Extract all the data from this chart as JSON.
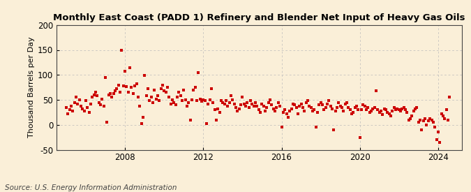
{
  "title": "Monthly East Coast (PADD 1) Refinery and Blender Net Input of Heavy Gas Oils",
  "ylabel": "Thousand Barrels per Day",
  "source": "Source: U.S. Energy Information Administration",
  "background_color": "#faefd8",
  "dot_color": "#cc0000",
  "grid_color": "#bbbbbb",
  "ylim": [
    -50,
    200
  ],
  "yticks": [
    -50,
    0,
    50,
    100,
    150,
    200
  ],
  "xticks": [
    2008,
    2012,
    2016,
    2020,
    2024
  ],
  "xlim": [
    2004.5,
    2025.2
  ],
  "data": {
    "dates": [
      2005.0,
      2005.083,
      2005.167,
      2005.25,
      2005.333,
      2005.417,
      2005.5,
      2005.583,
      2005.667,
      2005.75,
      2005.833,
      2005.917,
      2006.0,
      2006.083,
      2006.167,
      2006.25,
      2006.333,
      2006.417,
      2006.5,
      2006.583,
      2006.667,
      2006.75,
      2006.833,
      2006.917,
      2007.0,
      2007.083,
      2007.167,
      2007.25,
      2007.333,
      2007.417,
      2007.5,
      2007.583,
      2007.667,
      2007.75,
      2007.833,
      2007.917,
      2008.0,
      2008.083,
      2008.167,
      2008.25,
      2008.333,
      2008.417,
      2008.5,
      2008.583,
      2008.667,
      2008.75,
      2008.833,
      2008.917,
      2009.0,
      2009.083,
      2009.167,
      2009.25,
      2009.333,
      2009.417,
      2009.5,
      2009.583,
      2009.667,
      2009.75,
      2009.833,
      2009.917,
      2010.0,
      2010.083,
      2010.167,
      2010.25,
      2010.333,
      2010.417,
      2010.5,
      2010.583,
      2010.667,
      2010.75,
      2010.833,
      2010.917,
      2011.0,
      2011.083,
      2011.167,
      2011.25,
      2011.333,
      2011.417,
      2011.5,
      2011.583,
      2011.667,
      2011.75,
      2011.833,
      2011.917,
      2012.0,
      2012.083,
      2012.167,
      2012.25,
      2012.333,
      2012.417,
      2012.5,
      2012.583,
      2012.667,
      2012.75,
      2012.833,
      2012.917,
      2013.0,
      2013.083,
      2013.167,
      2013.25,
      2013.333,
      2013.417,
      2013.5,
      2013.583,
      2013.667,
      2013.75,
      2013.833,
      2013.917,
      2014.0,
      2014.083,
      2014.167,
      2014.25,
      2014.333,
      2014.417,
      2014.5,
      2014.583,
      2014.667,
      2014.75,
      2014.833,
      2014.917,
      2015.0,
      2015.083,
      2015.167,
      2015.25,
      2015.333,
      2015.417,
      2015.5,
      2015.583,
      2015.667,
      2015.75,
      2015.833,
      2015.917,
      2016.0,
      2016.083,
      2016.167,
      2016.25,
      2016.333,
      2016.417,
      2016.5,
      2016.583,
      2016.667,
      2016.75,
      2016.833,
      2016.917,
      2017.0,
      2017.083,
      2017.167,
      2017.25,
      2017.333,
      2017.417,
      2017.5,
      2017.583,
      2017.667,
      2017.75,
      2017.833,
      2017.917,
      2018.0,
      2018.083,
      2018.167,
      2018.25,
      2018.333,
      2018.417,
      2018.5,
      2018.583,
      2018.667,
      2018.75,
      2018.833,
      2018.917,
      2019.0,
      2019.083,
      2019.167,
      2019.25,
      2019.333,
      2019.417,
      2019.5,
      2019.583,
      2019.667,
      2019.75,
      2019.833,
      2019.917,
      2020.0,
      2020.083,
      2020.167,
      2020.25,
      2020.333,
      2020.417,
      2020.5,
      2020.583,
      2020.667,
      2020.75,
      2020.833,
      2020.917,
      2021.0,
      2021.083,
      2021.167,
      2021.25,
      2021.333,
      2021.417,
      2021.5,
      2021.583,
      2021.667,
      2021.75,
      2021.833,
      2021.917,
      2022.0,
      2022.083,
      2022.167,
      2022.25,
      2022.333,
      2022.417,
      2022.5,
      2022.583,
      2022.667,
      2022.75,
      2022.833,
      2022.917,
      2023.0,
      2023.083,
      2023.167,
      2023.25,
      2023.333,
      2023.417,
      2023.5,
      2023.583,
      2023.667,
      2023.75,
      2023.833,
      2023.917,
      2024.0,
      2024.083,
      2024.167,
      2024.25,
      2024.333,
      2024.417,
      2024.5,
      2024.583
    ],
    "values": [
      35,
      22,
      30,
      38,
      27,
      45,
      55,
      42,
      50,
      38,
      32,
      28,
      48,
      35,
      25,
      42,
      55,
      60,
      65,
      58,
      45,
      40,
      52,
      38,
      95,
      5,
      60,
      63,
      55,
      62,
      68,
      72,
      80,
      65,
      150,
      78,
      107,
      77,
      65,
      115,
      75,
      62,
      78,
      82,
      55,
      38,
      2,
      15,
      99,
      58,
      72,
      48,
      55,
      45,
      70,
      52,
      58,
      48,
      72,
      80,
      68,
      65,
      75,
      55,
      42,
      50,
      45,
      40,
      55,
      65,
      58,
      48,
      70,
      50,
      38,
      45,
      10,
      50,
      70,
      75,
      48,
      105,
      52,
      47,
      50,
      48,
      2,
      42,
      50,
      72,
      45,
      30,
      10,
      32,
      25,
      48,
      45,
      42,
      48,
      38,
      45,
      58,
      50,
      42,
      35,
      28,
      32,
      40,
      55,
      42,
      38,
      45,
      35,
      48,
      42,
      38,
      45,
      38,
      30,
      25,
      42,
      38,
      28,
      35,
      45,
      50,
      40,
      32,
      28,
      35,
      45,
      38,
      -5,
      25,
      30,
      22,
      15,
      28,
      32,
      42,
      40,
      35,
      22,
      38,
      42,
      35,
      28,
      45,
      48,
      38,
      35,
      28,
      30,
      -5,
      25,
      40,
      45,
      40,
      30,
      35,
      42,
      48,
      38,
      32,
      -10,
      28,
      35,
      45,
      38,
      35,
      28,
      42,
      45,
      35,
      30,
      22,
      25,
      35,
      38,
      30,
      -25,
      30,
      40,
      38,
      30,
      35,
      25,
      28,
      32,
      35,
      68,
      30,
      25,
      28,
      20,
      32,
      30,
      25,
      22,
      18,
      28,
      35,
      30,
      32,
      30,
      28,
      32,
      35,
      30,
      25,
      10,
      12,
      18,
      28,
      32,
      35,
      5,
      10,
      -10,
      8,
      12,
      0,
      8,
      12,
      10,
      5,
      -5,
      -30,
      -15,
      -35,
      22,
      18,
      12,
      30,
      10,
      55
    ]
  }
}
